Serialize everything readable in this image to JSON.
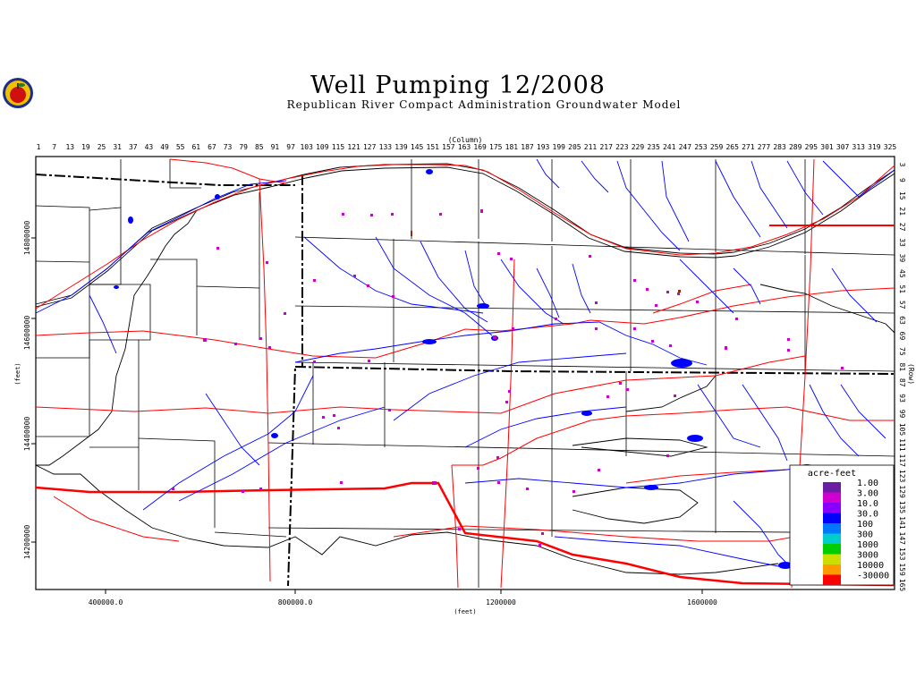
{
  "title": "Well Pumping 12/2008",
  "subtitle": "Republican River Compact Administration Groundwater Model",
  "column_axis": {
    "label": "(Column)",
    "ticks": [
      "1",
      "7",
      "13",
      "19",
      "25",
      "31",
      "37",
      "43",
      "49",
      "55",
      "61",
      "67",
      "73",
      "79",
      "85",
      "91",
      "97",
      "103",
      "109",
      "115",
      "121",
      "127",
      "133",
      "139",
      "145",
      "151",
      "157",
      "163",
      "169",
      "175",
      "181",
      "187",
      "193",
      "199",
      "205",
      "211",
      "217",
      "223",
      "229",
      "235",
      "241",
      "247",
      "253",
      "259",
      "265",
      "271",
      "277",
      "283",
      "289",
      "295",
      "301",
      "307",
      "313",
      "319",
      "325"
    ]
  },
  "row_axis": {
    "label": "(Row)",
    "ticks": [
      "3",
      "9",
      "15",
      "21",
      "27",
      "33",
      "39",
      "45",
      "51",
      "57",
      "63",
      "69",
      "75",
      "81",
      "87",
      "93",
      "99",
      "105",
      "111",
      "117",
      "123",
      "129",
      "135",
      "141",
      "147",
      "153",
      "159",
      "165"
    ]
  },
  "x_axis": {
    "label": "(feet)",
    "ticks": [
      "400000.0",
      "800000.0",
      "1200000",
      "1600000"
    ]
  },
  "y_axis": {
    "label": "(feet)",
    "ticks": [
      "14800000",
      "14600000",
      "14400000",
      "14200000"
    ]
  },
  "legend": {
    "title": "acre-feet",
    "entries": [
      {
        "label": "1.00",
        "color": "#6a1fa3"
      },
      {
        "label": "3.00",
        "color": "#d000d0"
      },
      {
        "label": "10.0",
        "color": "#8a00ff"
      },
      {
        "label": "30.0",
        "color": "#0000ff"
      },
      {
        "label": "100",
        "color": "#0077ff"
      },
      {
        "label": "300",
        "color": "#00cccc"
      },
      {
        "label": "1000",
        "color": "#00cc00"
      },
      {
        "label": "3000",
        "color": "#ccdd00"
      },
      {
        "label": "10000",
        "color": "#ff9900"
      },
      {
        "label": "-30000",
        "color": "#ff0000"
      }
    ]
  },
  "colors": {
    "rivers": "#0000ff",
    "roads": "#ff0000",
    "grid": "#000000",
    "wells": "#cc00cc"
  }
}
